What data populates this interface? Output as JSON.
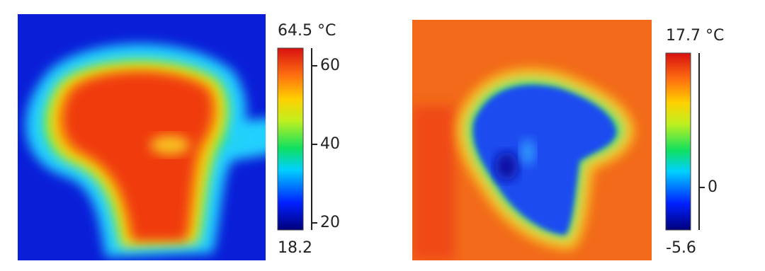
{
  "panels": [
    {
      "colorbar": {
        "max": {
          "value": 64.5,
          "label": "64.5 °C"
        },
        "min": {
          "value": 18.2,
          "label": "18.2"
        },
        "ticks": [
          20,
          40,
          60
        ]
      }
    },
    {
      "colorbar": {
        "max": {
          "value": 17.7,
          "label": "17.7 °C"
        },
        "min": {
          "value": -5.6,
          "label": "-5.6"
        },
        "ticks": [
          0
        ]
      }
    }
  ]
}
